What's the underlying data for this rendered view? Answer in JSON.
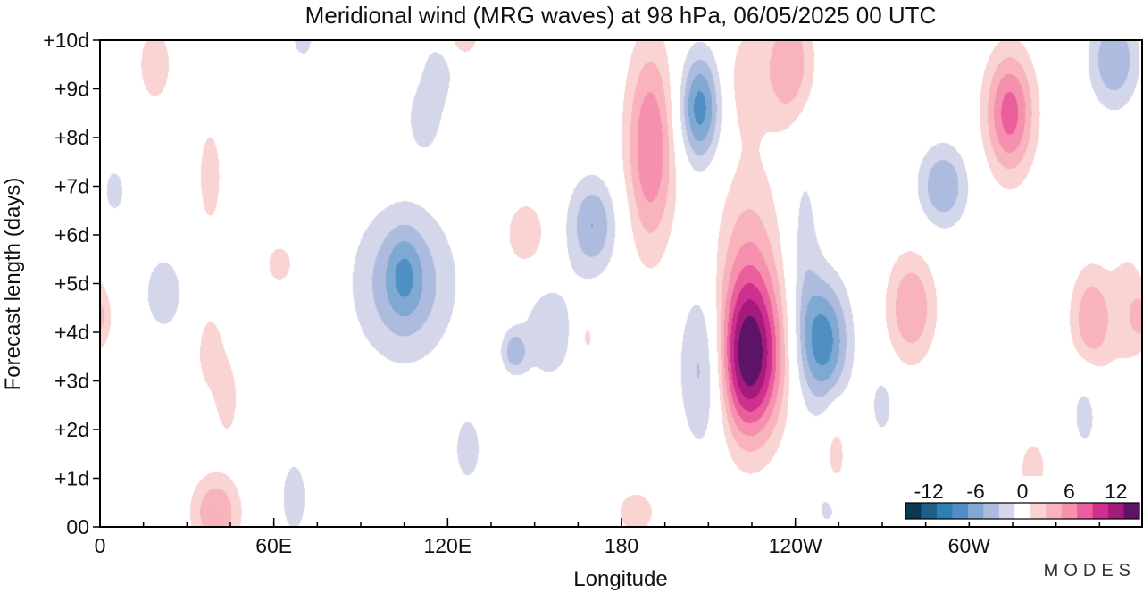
{
  "chart_data": {
    "type": "heatmap",
    "title": "Meridional wind (MRG waves) at  98 hPa,  06/05/2025  00 UTC",
    "xlabel": "Longitude",
    "ylabel": "Forecast length (days)",
    "x_ticks": [
      "0",
      "60E",
      "120E",
      "180",
      "120W",
      "60W"
    ],
    "x_tick_lon": [
      0,
      60,
      120,
      180,
      240,
      300
    ],
    "x_minor_step_deg": 15,
    "xlim_deg_east": [
      0,
      360
    ],
    "y_ticks": [
      "00",
      "+1d",
      "+2d",
      "+3d",
      "+4d",
      "+5d",
      "+6d",
      "+7d",
      "+8d",
      "+9d",
      "+10d"
    ],
    "ylim_days": [
      0,
      10
    ],
    "grid": false,
    "colorbar": {
      "location": "bottom-right",
      "tick_labels": [
        "-12",
        "-6",
        "0",
        "6",
        "12"
      ],
      "bounds": [
        -16,
        -14,
        -12,
        -10,
        -8,
        -6,
        -4,
        -2,
        2,
        4,
        6,
        8,
        10,
        12,
        14,
        16
      ],
      "colors": [
        "#0b3954",
        "#1e5f8a",
        "#2f7fb5",
        "#4f8fc2",
        "#7fa8d3",
        "#adbcde",
        "#d4d6ea",
        "#ffffff",
        "#fad3d3",
        "#f8b3bc",
        "#f590ae",
        "#ea5f9b",
        "#cf2f8e",
        "#a41b7d",
        "#5e1466"
      ]
    },
    "features": [
      {
        "lon": 19,
        "day": 9.5,
        "v": 4,
        "sx": 4,
        "sy": 0.55
      },
      {
        "lon": 5,
        "day": 6.9,
        "v": -3,
        "sx": 3,
        "sy": 0.4
      },
      {
        "lon": 38,
        "day": 7.2,
        "v": 3,
        "sx": 3.5,
        "sy": 0.9
      },
      {
        "lon": 0,
        "day": 4.3,
        "v": 3,
        "sx": 3,
        "sy": 0.4
      },
      {
        "lon": 22,
        "day": 4.8,
        "v": -3,
        "sx": 6,
        "sy": 0.7
      },
      {
        "lon": 38,
        "day": 3.6,
        "v": 3,
        "sx": 4,
        "sy": 0.7
      },
      {
        "lon": 44,
        "day": 2.6,
        "v": 3,
        "sx": 3,
        "sy": 0.6
      },
      {
        "lon": 40,
        "day": 0.3,
        "v": 6,
        "sx": 6,
        "sy": 0.55
      },
      {
        "lon": 67,
        "day": 0.6,
        "v": -3,
        "sx": 4,
        "sy": 0.7
      },
      {
        "lon": 62,
        "day": 5.4,
        "v": 3,
        "sx": 4,
        "sy": 0.35
      },
      {
        "lon": 105,
        "day": 5.0,
        "v": -6,
        "sx": 12,
        "sy": 1.1
      },
      {
        "lon": 105,
        "day": 5.2,
        "v": -3,
        "sx": 4,
        "sy": 0.6
      },
      {
        "lon": 117,
        "day": 9.4,
        "v": -3,
        "sx": 4,
        "sy": 0.5
      },
      {
        "lon": 112,
        "day": 8.4,
        "v": -3,
        "sx": 5,
        "sy": 0.6
      },
      {
        "lon": 125,
        "day": 10.0,
        "v": 3,
        "sx": 5,
        "sy": 0.3
      },
      {
        "lon": 70,
        "day": 10.0,
        "v": -3,
        "sx": 3,
        "sy": 0.3
      },
      {
        "lon": 147,
        "day": 6.0,
        "v": 4,
        "sx": 5,
        "sy": 0.5
      },
      {
        "lon": 170,
        "day": 6.2,
        "v": -6,
        "sx": 6,
        "sy": 0.7
      },
      {
        "lon": 155,
        "day": 4.0,
        "v": -3,
        "sx": 8,
        "sy": 0.9
      },
      {
        "lon": 143,
        "day": 3.6,
        "v": -5,
        "sx": 3,
        "sy": 0.3
      },
      {
        "lon": 168,
        "day": 3.9,
        "v": 3,
        "sx": 2.5,
        "sy": 0.4
      },
      {
        "lon": 127,
        "day": 1.6,
        "v": -3,
        "sx": 4,
        "sy": 0.6
      },
      {
        "lon": 185,
        "day": 0.3,
        "v": 3,
        "sx": 6,
        "sy": 0.4
      },
      {
        "lon": 190,
        "day": 7.8,
        "v": 8,
        "sx": 6,
        "sy": 1.5
      },
      {
        "lon": 207,
        "day": 8.6,
        "v": -9,
        "sx": 5,
        "sy": 0.8
      },
      {
        "lon": 209,
        "day": 3.3,
        "v": -6,
        "sx": 6,
        "sy": 1.2
      },
      {
        "lon": 224,
        "day": 3.4,
        "v": 12,
        "sx": 8,
        "sy": 1.1
      },
      {
        "lon": 224,
        "day": 4.8,
        "v": 6,
        "sx": 8,
        "sy": 1.8
      },
      {
        "lon": 223,
        "day": 9.2,
        "v": 3,
        "sx": 5,
        "sy": 0.8
      },
      {
        "lon": 238,
        "day": 9.5,
        "v": 6,
        "sx": 6,
        "sy": 0.9
      },
      {
        "lon": 250,
        "day": 3.8,
        "v": -9,
        "sx": 6,
        "sy": 0.9
      },
      {
        "lon": 243,
        "day": 5.5,
        "v": -3,
        "sx": 4,
        "sy": 1.8
      },
      {
        "lon": 280,
        "day": 4.5,
        "v": 6,
        "sx": 6,
        "sy": 0.8
      },
      {
        "lon": 270,
        "day": 2.5,
        "v": -3,
        "sx": 3,
        "sy": 0.5
      },
      {
        "lon": 254,
        "day": 1.5,
        "v": 3,
        "sx": 3,
        "sy": 0.8
      },
      {
        "lon": 252,
        "day": 0.4,
        "v": -3,
        "sx": 4,
        "sy": 0.4
      },
      {
        "lon": 291,
        "day": 7.0,
        "v": -6,
        "sx": 6,
        "sy": 0.6
      },
      {
        "lon": 314,
        "day": 8.5,
        "v": 9,
        "sx": 6,
        "sy": 0.9
      },
      {
        "lon": 350,
        "day": 9.6,
        "v": -6,
        "sx": 6,
        "sy": 0.7
      },
      {
        "lon": 342,
        "day": 4.2,
        "v": 6,
        "sx": 5,
        "sy": 0.8
      },
      {
        "lon": 355,
        "day": 4.5,
        "v": 3,
        "sx": 5,
        "sy": 1.0
      },
      {
        "lon": 340,
        "day": 2.5,
        "v": -3,
        "sx": 4,
        "sy": 0.8
      },
      {
        "lon": 322,
        "day": 1.2,
        "v": 3,
        "sx": 4,
        "sy": 0.5
      }
    ]
  },
  "branding": {
    "logo_text": "MODES"
  }
}
